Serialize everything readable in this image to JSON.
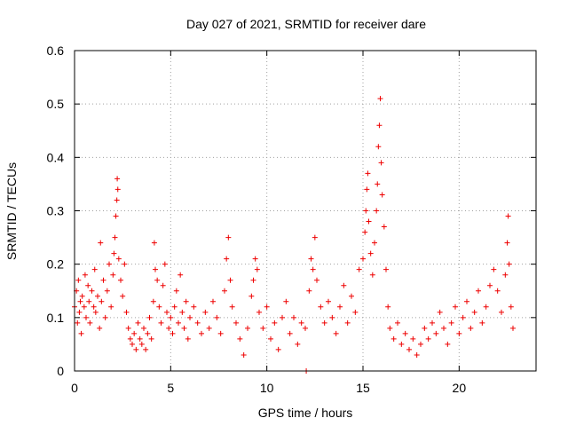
{
  "chart_data": {
    "type": "scatter",
    "title": "Day 027 of 2021, SRMTID for receiver dare",
    "xlabel": "GPS time / hours",
    "ylabel": "SRMTID / TECUs",
    "xlim": [
      0,
      24
    ],
    "ylim": [
      0,
      0.6
    ],
    "xticks": [
      0,
      5,
      10,
      15,
      20
    ],
    "xtick_labels": [
      "0",
      "5",
      "10",
      "15",
      "20"
    ],
    "yticks": [
      0,
      0.1,
      0.2,
      0.3,
      0.4,
      0.5,
      0.6
    ],
    "ytick_labels": [
      "0",
      "0.1",
      "0.2",
      "0.3",
      "0.4",
      "0.5",
      "0.6"
    ],
    "grid": true,
    "marker": "+",
    "color": "#ee0000",
    "series": [
      {
        "name": "SRMTID",
        "points": [
          [
            0.0,
            0.12
          ],
          [
            0.1,
            0.15
          ],
          [
            0.15,
            0.09
          ],
          [
            0.2,
            0.17
          ],
          [
            0.25,
            0.11
          ],
          [
            0.3,
            0.13
          ],
          [
            0.35,
            0.07
          ],
          [
            0.4,
            0.14
          ],
          [
            0.5,
            0.12
          ],
          [
            0.55,
            0.18
          ],
          [
            0.6,
            0.1
          ],
          [
            0.7,
            0.16
          ],
          [
            0.75,
            0.13
          ],
          [
            0.8,
            0.09
          ],
          [
            0.9,
            0.15
          ],
          [
            1.0,
            0.12
          ],
          [
            1.05,
            0.19
          ],
          [
            1.1,
            0.11
          ],
          [
            1.2,
            0.14
          ],
          [
            1.3,
            0.08
          ],
          [
            1.35,
            0.24
          ],
          [
            1.4,
            0.13
          ],
          [
            1.5,
            0.17
          ],
          [
            1.6,
            0.1
          ],
          [
            1.7,
            0.15
          ],
          [
            1.8,
            0.2
          ],
          [
            1.9,
            0.12
          ],
          [
            2.0,
            0.18
          ],
          [
            2.05,
            0.22
          ],
          [
            2.1,
            0.25
          ],
          [
            2.15,
            0.29
          ],
          [
            2.2,
            0.32
          ],
          [
            2.22,
            0.36
          ],
          [
            2.25,
            0.34
          ],
          [
            2.3,
            0.21
          ],
          [
            2.4,
            0.17
          ],
          [
            2.5,
            0.14
          ],
          [
            2.6,
            0.2
          ],
          [
            2.7,
            0.11
          ],
          [
            2.8,
            0.08
          ],
          [
            2.9,
            0.06
          ],
          [
            3.0,
            0.05
          ],
          [
            3.1,
            0.07
          ],
          [
            3.2,
            0.04
          ],
          [
            3.3,
            0.09
          ],
          [
            3.4,
            0.06
          ],
          [
            3.5,
            0.05
          ],
          [
            3.6,
            0.08
          ],
          [
            3.7,
            0.04
          ],
          [
            3.8,
            0.07
          ],
          [
            3.9,
            0.1
          ],
          [
            4.0,
            0.06
          ],
          [
            4.1,
            0.13
          ],
          [
            4.15,
            0.24
          ],
          [
            4.2,
            0.19
          ],
          [
            4.3,
            0.17
          ],
          [
            4.4,
            0.12
          ],
          [
            4.5,
            0.09
          ],
          [
            4.6,
            0.16
          ],
          [
            4.7,
            0.2
          ],
          [
            4.8,
            0.11
          ],
          [
            4.9,
            0.08
          ],
          [
            5.0,
            0.1
          ],
          [
            5.1,
            0.07
          ],
          [
            5.2,
            0.12
          ],
          [
            5.3,
            0.15
          ],
          [
            5.4,
            0.09
          ],
          [
            5.5,
            0.18
          ],
          [
            5.6,
            0.11
          ],
          [
            5.7,
            0.08
          ],
          [
            5.8,
            0.13
          ],
          [
            5.9,
            0.06
          ],
          [
            6.0,
            0.1
          ],
          [
            6.2,
            0.12
          ],
          [
            6.4,
            0.09
          ],
          [
            6.6,
            0.07
          ],
          [
            6.8,
            0.11
          ],
          [
            7.0,
            0.08
          ],
          [
            7.2,
            0.13
          ],
          [
            7.4,
            0.1
          ],
          [
            7.6,
            0.07
          ],
          [
            7.8,
            0.15
          ],
          [
            7.9,
            0.21
          ],
          [
            8.0,
            0.25
          ],
          [
            8.1,
            0.17
          ],
          [
            8.2,
            0.12
          ],
          [
            8.4,
            0.09
          ],
          [
            8.6,
            0.06
          ],
          [
            8.8,
            0.03
          ],
          [
            9.0,
            0.08
          ],
          [
            9.2,
            0.14
          ],
          [
            9.3,
            0.17
          ],
          [
            9.4,
            0.21
          ],
          [
            9.5,
            0.19
          ],
          [
            9.6,
            0.11
          ],
          [
            9.8,
            0.08
          ],
          [
            10.0,
            0.12
          ],
          [
            10.2,
            0.06
          ],
          [
            10.4,
            0.09
          ],
          [
            10.6,
            0.04
          ],
          [
            10.8,
            0.1
          ],
          [
            11.0,
            0.13
          ],
          [
            11.2,
            0.07
          ],
          [
            11.4,
            0.1
          ],
          [
            11.6,
            0.05
          ],
          [
            11.8,
            0.09
          ],
          [
            12.0,
            0.08
          ],
          [
            12.05,
            0.0
          ],
          [
            12.2,
            0.15
          ],
          [
            12.3,
            0.21
          ],
          [
            12.4,
            0.19
          ],
          [
            12.5,
            0.25
          ],
          [
            12.6,
            0.17
          ],
          [
            12.8,
            0.12
          ],
          [
            13.0,
            0.09
          ],
          [
            13.2,
            0.13
          ],
          [
            13.4,
            0.1
          ],
          [
            13.6,
            0.07
          ],
          [
            13.8,
            0.12
          ],
          [
            14.0,
            0.16
          ],
          [
            14.2,
            0.09
          ],
          [
            14.4,
            0.14
          ],
          [
            14.6,
            0.11
          ],
          [
            14.8,
            0.19
          ],
          [
            15.0,
            0.21
          ],
          [
            15.1,
            0.26
          ],
          [
            15.15,
            0.3
          ],
          [
            15.2,
            0.34
          ],
          [
            15.25,
            0.37
          ],
          [
            15.3,
            0.28
          ],
          [
            15.4,
            0.22
          ],
          [
            15.5,
            0.18
          ],
          [
            15.6,
            0.24
          ],
          [
            15.7,
            0.3
          ],
          [
            15.75,
            0.35
          ],
          [
            15.8,
            0.42
          ],
          [
            15.85,
            0.46
          ],
          [
            15.9,
            0.51
          ],
          [
            15.95,
            0.39
          ],
          [
            16.0,
            0.33
          ],
          [
            16.1,
            0.27
          ],
          [
            16.2,
            0.19
          ],
          [
            16.3,
            0.12
          ],
          [
            16.4,
            0.08
          ],
          [
            16.6,
            0.06
          ],
          [
            16.8,
            0.09
          ],
          [
            17.0,
            0.05
          ],
          [
            17.2,
            0.07
          ],
          [
            17.4,
            0.04
          ],
          [
            17.6,
            0.06
          ],
          [
            17.8,
            0.03
          ],
          [
            18.0,
            0.05
          ],
          [
            18.2,
            0.08
          ],
          [
            18.4,
            0.06
          ],
          [
            18.6,
            0.09
          ],
          [
            18.8,
            0.07
          ],
          [
            19.0,
            0.11
          ],
          [
            19.2,
            0.08
          ],
          [
            19.4,
            0.05
          ],
          [
            19.6,
            0.09
          ],
          [
            19.8,
            0.12
          ],
          [
            20.0,
            0.07
          ],
          [
            20.2,
            0.1
          ],
          [
            20.4,
            0.13
          ],
          [
            20.6,
            0.08
          ],
          [
            20.8,
            0.11
          ],
          [
            21.0,
            0.15
          ],
          [
            21.2,
            0.09
          ],
          [
            21.4,
            0.12
          ],
          [
            21.6,
            0.16
          ],
          [
            21.8,
            0.19
          ],
          [
            22.0,
            0.15
          ],
          [
            22.2,
            0.11
          ],
          [
            22.4,
            0.18
          ],
          [
            22.5,
            0.24
          ],
          [
            22.55,
            0.29
          ],
          [
            22.6,
            0.2
          ],
          [
            22.7,
            0.12
          ],
          [
            22.8,
            0.08
          ]
        ]
      }
    ]
  }
}
